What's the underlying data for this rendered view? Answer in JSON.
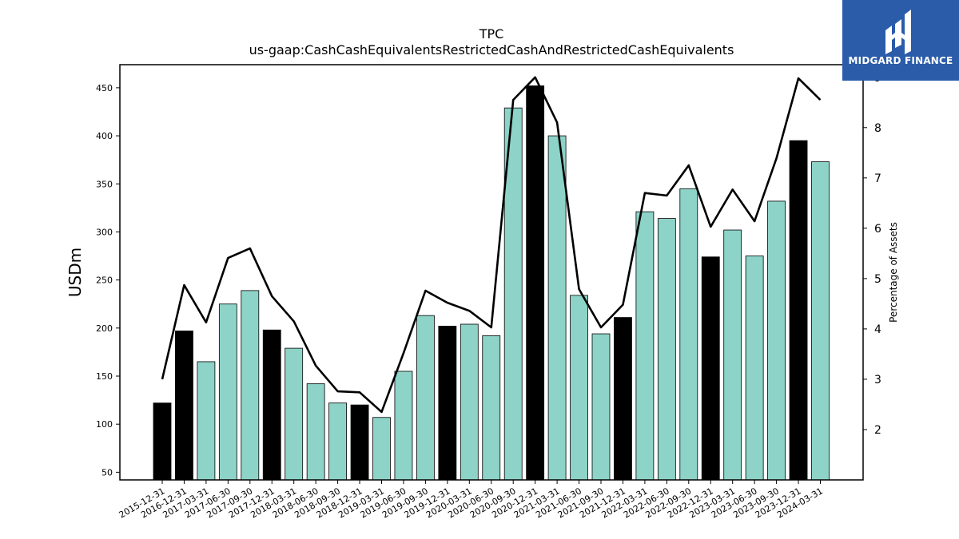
{
  "chart_data": {
    "type": "bar",
    "title": "TPC",
    "subtitle": "us-gaap:CashCashEquivalentsRestrictedCashAndRestrictedCashEquivalents",
    "ylabel": "USDm",
    "ylabel_right": "Percentage of Assets",
    "ylim": [
      42,
      474
    ],
    "ylim_right": [
      1.0,
      9.25
    ],
    "yticks": [
      50,
      100,
      150,
      200,
      250,
      300,
      350,
      400,
      450
    ],
    "yticks_right": [
      2,
      3,
      4,
      5,
      6,
      7,
      8,
      9
    ],
    "categories": [
      "2015-12-31",
      "2016-12-31",
      "2017-03-31",
      "2017-06-30",
      "2017-09-30",
      "2017-12-31",
      "2018-03-31",
      "2018-06-30",
      "2018-09-30",
      "2018-12-31",
      "2019-03-31",
      "2019-06-30",
      "2019-09-30",
      "2019-12-31",
      "2020-03-31",
      "2020-06-30",
      "2020-09-30",
      "2020-12-31",
      "2021-03-31",
      "2021-06-30",
      "2021-09-30",
      "2021-12-31",
      "2022-03-31",
      "2022-06-30",
      "2022-09-30",
      "2022-12-31",
      "2023-03-31",
      "2023-06-30",
      "2023-09-30",
      "2023-12-31",
      "2024-03-31"
    ],
    "series": [
      {
        "type": "bar",
        "values": [
          122,
          197,
          165,
          225,
          239,
          198,
          179,
          142,
          122,
          120,
          107,
          155,
          213,
          202,
          204,
          192,
          429,
          452,
          400,
          234,
          194,
          211,
          321,
          314,
          345,
          274,
          302,
          275,
          332,
          395,
          373
        ],
        "year_end": [
          true,
          true,
          false,
          false,
          false,
          true,
          false,
          false,
          false,
          true,
          false,
          false,
          false,
          true,
          false,
          false,
          false,
          true,
          false,
          false,
          false,
          true,
          false,
          false,
          false,
          true,
          false,
          false,
          false,
          true,
          false
        ]
      },
      {
        "type": "line",
        "axis": "right",
        "values": [
          3.0,
          4.87,
          4.13,
          5.41,
          5.6,
          4.65,
          4.15,
          3.27,
          2.76,
          2.74,
          2.35,
          3.52,
          4.76,
          4.52,
          4.36,
          4.03,
          8.55,
          9.0,
          8.1,
          4.79,
          4.03,
          4.48,
          6.7,
          6.65,
          7.25,
          6.03,
          6.77,
          6.14,
          7.39,
          8.98,
          8.55
        ]
      }
    ],
    "colors": {
      "bar_default": "#8dd3c7",
      "bar_year_end": "#000000",
      "line": "#000000"
    },
    "grid": false,
    "legend": "none"
  },
  "logo": {
    "text": "MIDGARD FINANCE",
    "background": "#2a5caa"
  }
}
